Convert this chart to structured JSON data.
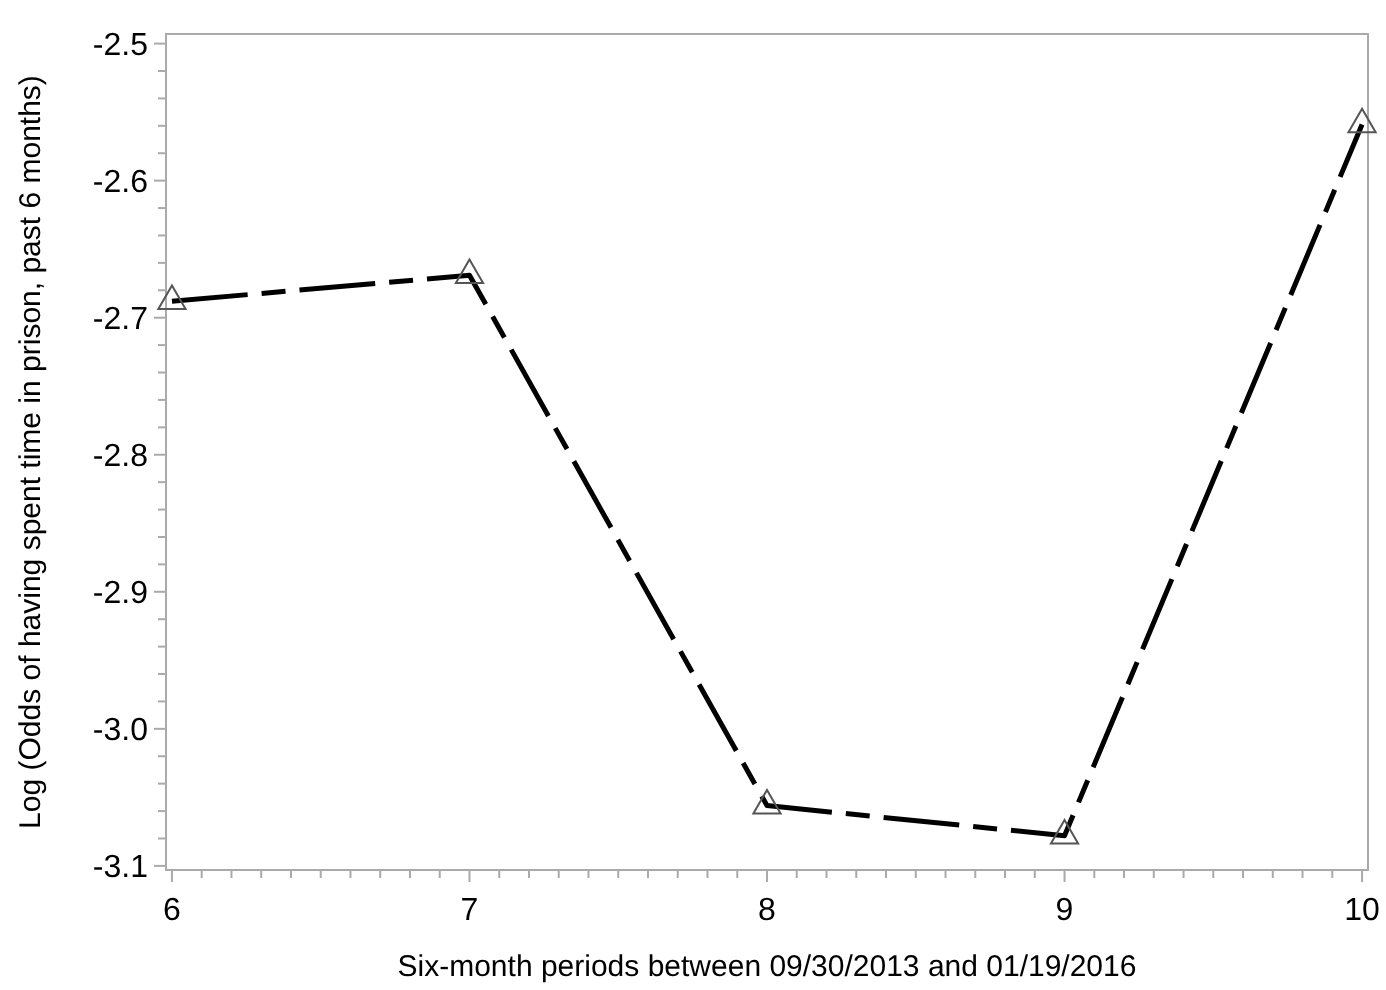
{
  "chart_data": {
    "type": "line",
    "xlabel": "Six-month periods between 09/30/2013 and 01/19/2016",
    "ylabel": "Log (Odds of having spent time in prison, past 6 months)",
    "x": [
      6,
      7,
      8,
      9,
      10
    ],
    "series": [
      {
        "color": "#000000",
        "values": [
          -2.688,
          -2.669,
          -3.056,
          -3.078,
          -2.559
        ]
      }
    ],
    "xlim": [
      5.98,
      10.02
    ],
    "ylim": [
      -3.103,
      -2.493
    ],
    "xticks": [
      6,
      {
        "value": 6.1,
        "label": null
      },
      {
        "value": 6.2,
        "label": null
      },
      {
        "value": 6.3,
        "label": null
      },
      {
        "value": 6.4,
        "label": null
      },
      {
        "value": 6.5,
        "label": null
      },
      {
        "value": 6.6,
        "label": null
      },
      {
        "value": 6.7,
        "label": null
      },
      {
        "value": 6.8,
        "label": null
      },
      {
        "value": 6.9,
        "label": null
      },
      7,
      {
        "value": 7.1,
        "label": null
      },
      {
        "value": 7.2,
        "label": null
      },
      {
        "value": 7.3,
        "label": null
      },
      {
        "value": 7.4,
        "label": null
      },
      {
        "value": 7.5,
        "label": null
      },
      {
        "value": 7.6,
        "label": null
      },
      {
        "value": 7.7,
        "label": null
      },
      {
        "value": 7.8,
        "label": null
      },
      {
        "value": 7.9,
        "label": null
      },
      8,
      {
        "value": 8.1,
        "label": null
      },
      {
        "value": 8.2,
        "label": null
      },
      {
        "value": 8.3,
        "label": null
      },
      {
        "value": 8.4,
        "label": null
      },
      {
        "value": 8.5,
        "label": null
      },
      {
        "value": 8.6,
        "label": null
      },
      {
        "value": 8.7,
        "label": null
      },
      {
        "value": 8.8,
        "label": null
      },
      {
        "value": 8.9,
        "label": null
      },
      9,
      {
        "value": 9.1,
        "label": null
      },
      {
        "value": 9.2,
        "label": null
      },
      {
        "value": 9.3,
        "label": null
      },
      {
        "value": 9.4,
        "label": null
      },
      {
        "value": 9.5,
        "label": null
      },
      {
        "value": 9.6,
        "label": null
      },
      {
        "value": 9.7,
        "label": null
      },
      {
        "value": 9.8,
        "label": null
      },
      {
        "value": 9.9,
        "label": null
      },
      10
    ],
    "yticks": [
      {
        "value": -3.1,
        "label": "-3.1"
      },
      {
        "value": -3.08,
        "label": null
      },
      {
        "value": -3.06,
        "label": null
      },
      {
        "value": -3.04,
        "label": null
      },
      {
        "value": -3.02,
        "label": null
      },
      {
        "value": -3.0,
        "label": "-3.0"
      },
      {
        "value": -2.98,
        "label": null
      },
      {
        "value": -2.96,
        "label": null
      },
      {
        "value": -2.94,
        "label": null
      },
      {
        "value": -2.92,
        "label": null
      },
      -2.9,
      {
        "value": -2.88,
        "label": null
      },
      {
        "value": -2.86,
        "label": null
      },
      {
        "value": -2.84,
        "label": null
      },
      {
        "value": -2.82,
        "label": null
      },
      -2.8,
      {
        "value": -2.78,
        "label": null
      },
      {
        "value": -2.76,
        "label": null
      },
      {
        "value": -2.74,
        "label": null
      },
      {
        "value": -2.72,
        "label": null
      },
      -2.7,
      {
        "value": -2.68,
        "label": null
      },
      {
        "value": -2.66,
        "label": null
      },
      {
        "value": -2.64,
        "label": null
      },
      {
        "value": -2.62,
        "label": null
      },
      -2.6,
      {
        "value": -2.58,
        "label": null
      },
      {
        "value": -2.56,
        "label": null
      },
      {
        "value": -2.54,
        "label": null
      },
      {
        "value": -2.52,
        "label": null
      },
      -2.5
    ],
    "marker": "triangle",
    "line_style": "dashed",
    "grid": false
  }
}
